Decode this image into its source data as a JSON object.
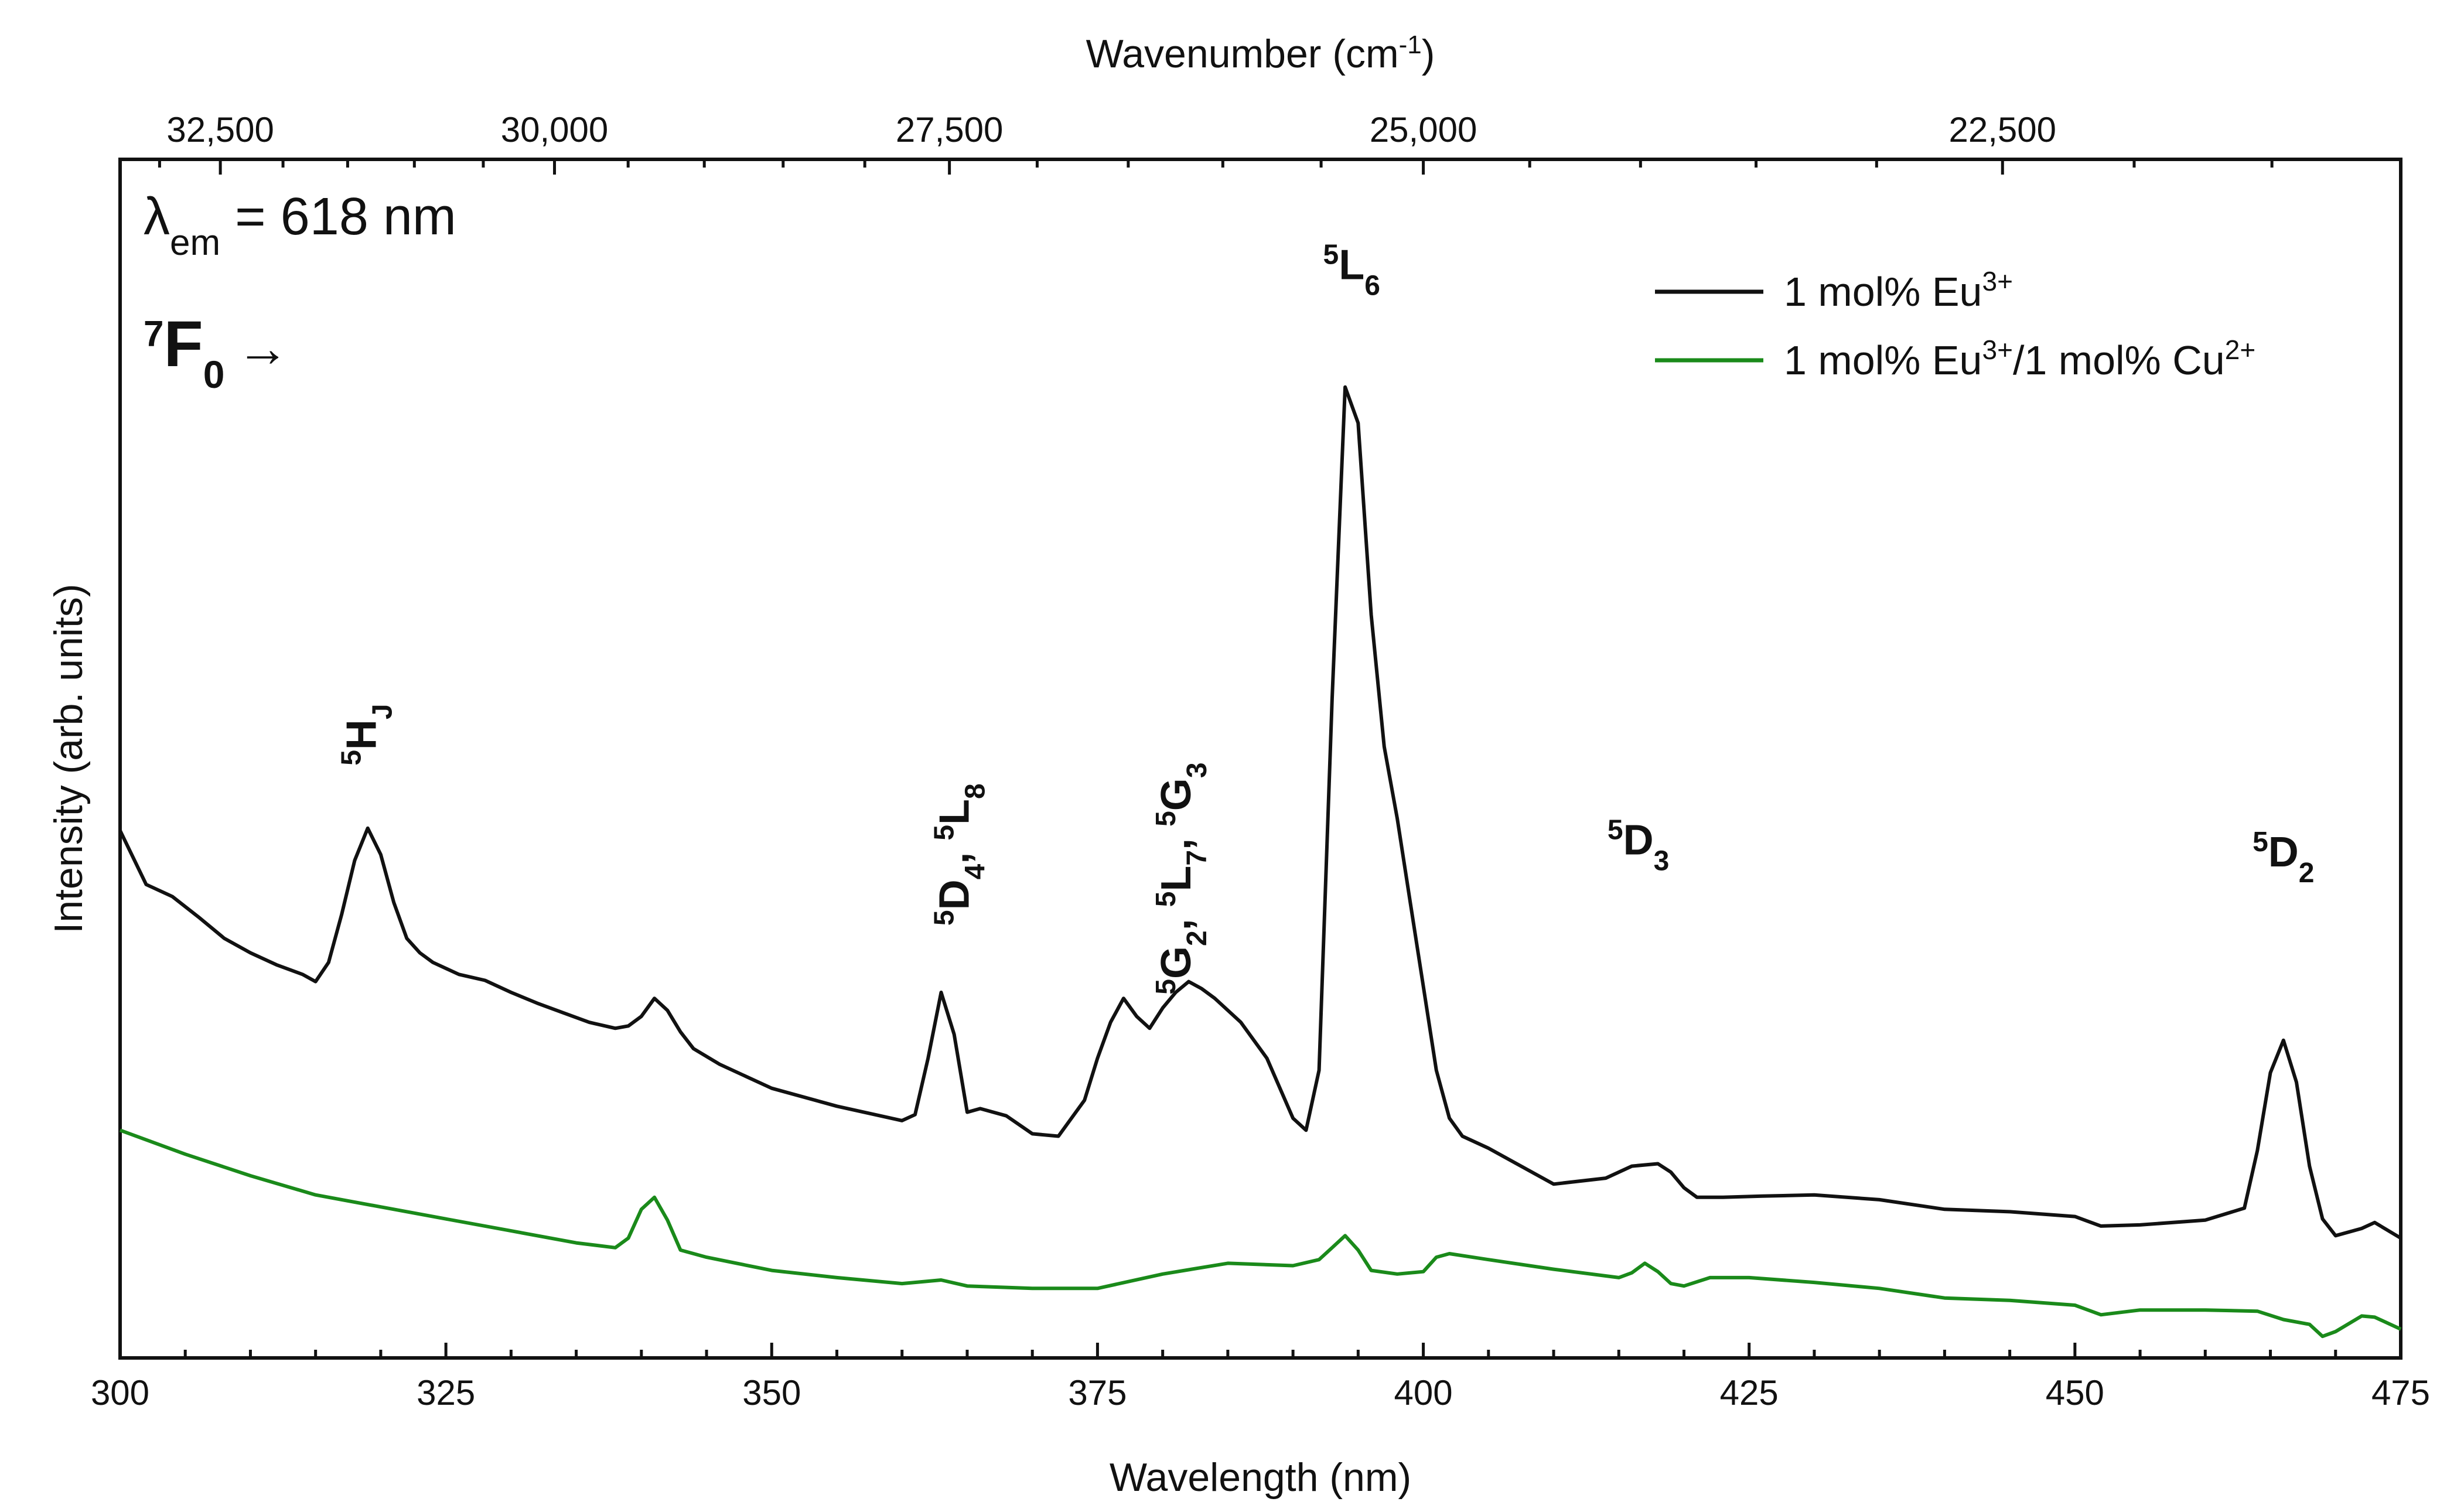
{
  "chart_data": {
    "type": "line",
    "title": "",
    "xlabel": "Wavelength (nm)",
    "ylabel": "Intensity (arb. units)",
    "xlim": [
      300,
      475
    ],
    "ylim": [
      0,
      100
    ],
    "x_ticks": [
      300,
      325,
      350,
      375,
      400,
      425,
      450,
      475
    ],
    "top_axis": {
      "label_main": "Wavenumber (cm",
      "label_sup": "-1",
      "label_close": ")",
      "ticks": [
        {
          "label": "32,500",
          "value": 32500
        },
        {
          "label": "30,000",
          "value": 30000
        },
        {
          "label": "27,500",
          "value": 27500
        },
        {
          "label": "25,000",
          "value": 25000
        },
        {
          "label": "22,500",
          "value": 22500
        }
      ]
    },
    "inset_text": {
      "lambda_symbol": "λ",
      "lambda_sub": "em",
      "lambda_value": " = 618 nm",
      "transition_main": "F",
      "transition_sup": "7",
      "transition_sub": "0",
      "transition_arrow": "→"
    },
    "legend": {
      "position": "top-right",
      "entries": [
        {
          "main": "1 mol% Eu",
          "sup": "3+",
          "rest": "",
          "rest_sup": "",
          "color": "#111111"
        },
        {
          "main": "1 mol% Eu",
          "sup": "3+",
          "rest": "/1 mol% Cu",
          "rest_sup": "2+",
          "color": "#1a8a1a"
        }
      ]
    },
    "annotations": [
      {
        "x": 318.5,
        "y": 52,
        "rotate": true,
        "parts": [
          [
            "sup",
            "5"
          ],
          [
            "n",
            "H"
          ],
          [
            "sub",
            "J"
          ]
        ]
      },
      {
        "x": 364,
        "y": 42,
        "rotate": true,
        "parts": [
          [
            "sup",
            "5"
          ],
          [
            "n",
            "D"
          ],
          [
            "sub",
            "4"
          ],
          [
            "n",
            ", "
          ],
          [
            "sup",
            "5"
          ],
          [
            "n",
            "L"
          ],
          [
            "sub",
            "8"
          ]
        ]
      },
      {
        "x": 381,
        "y": 40,
        "rotate": true,
        "parts": [
          [
            "sup",
            "5"
          ],
          [
            "n",
            "G"
          ],
          [
            "sub",
            "2"
          ],
          [
            "n",
            ", "
          ],
          [
            "sup",
            "5"
          ],
          [
            "n",
            "L"
          ],
          [
            "sub",
            "7"
          ],
          [
            "n",
            ", "
          ],
          [
            "sup",
            "5"
          ],
          [
            "n",
            "G"
          ],
          [
            "sub",
            "3"
          ]
        ]
      },
      {
        "x": 394.5,
        "y": 90,
        "rotate": false,
        "parts": [
          [
            "sup",
            "5"
          ],
          [
            "n",
            "L"
          ],
          [
            "sub",
            "6"
          ]
        ]
      },
      {
        "x": 416.5,
        "y": 42,
        "rotate": false,
        "parts": [
          [
            "sup",
            "5"
          ],
          [
            "n",
            "D"
          ],
          [
            "sub",
            "3"
          ]
        ]
      },
      {
        "x": 466,
        "y": 41,
        "rotate": false,
        "parts": [
          [
            "sup",
            "5"
          ],
          [
            "n",
            "D"
          ],
          [
            "sub",
            "2"
          ]
        ]
      }
    ],
    "series": [
      {
        "name": "1 mol% Eu3+",
        "color": "#111111",
        "x": [
          300,
          302,
          304,
          306,
          308,
          310,
          312,
          314,
          315,
          316,
          317,
          318,
          319,
          320,
          321,
          322,
          323,
          324,
          326,
          328,
          330,
          332,
          334,
          336,
          338,
          339,
          340,
          341,
          342,
          343,
          344,
          346,
          350,
          355,
          360,
          361,
          362,
          363,
          364,
          365,
          366,
          368,
          370,
          372,
          374,
          375,
          376,
          377,
          378,
          379,
          380,
          381,
          382,
          383,
          384,
          386,
          388,
          390,
          391,
          392,
          393,
          394,
          395,
          396,
          397,
          398,
          399,
          400,
          401,
          402,
          403,
          405,
          410,
          414,
          416,
          418,
          419,
          420,
          421,
          423,
          426,
          430,
          435,
          440,
          445,
          450,
          452,
          455,
          460,
          463,
          464,
          465,
          466,
          467,
          468,
          469,
          470,
          472,
          473,
          475
        ],
        "y": [
          44,
          39.5,
          38.5,
          36.8,
          35,
          33.8,
          32.8,
          32,
          31.4,
          33,
          37,
          41.5,
          44.2,
          42,
          38,
          35,
          33.8,
          33,
          32,
          31.5,
          30.5,
          29.6,
          28.8,
          28,
          27.5,
          27.7,
          28.5,
          30,
          29,
          27.2,
          25.8,
          24.5,
          22.5,
          21,
          19.8,
          20.3,
          25,
          30.5,
          27,
          20.5,
          20.8,
          20.2,
          18.7,
          18.5,
          21.5,
          25,
          28,
          30,
          28.5,
          27.5,
          29.2,
          30.5,
          31.4,
          30.8,
          30,
          28,
          25,
          20,
          19,
          24,
          55,
          81,
          78,
          62,
          51,
          45,
          38,
          31,
          24,
          20,
          18.5,
          17.5,
          14.5,
          15,
          16,
          16.2,
          15.5,
          14.2,
          13.4,
          13.4,
          13.5,
          13.6,
          13.2,
          12.4,
          12.2,
          11.8,
          11,
          11.1,
          11.5,
          12.5,
          17.3,
          23.8,
          26.5,
          23,
          16,
          11.6,
          10.2,
          10.8,
          11.3,
          10
        ]
      },
      {
        "name": "1 mol% Eu3+/1 mol% Cu2+",
        "color": "#1a8a1a",
        "x": [
          300,
          305,
          310,
          315,
          320,
          325,
          330,
          335,
          338,
          339,
          340,
          341,
          342,
          343,
          345,
          350,
          355,
          360,
          363,
          365,
          370,
          375,
          380,
          385,
          390,
          392,
          393,
          394,
          395,
          396,
          398,
          400,
          401,
          402,
          405,
          410,
          415,
          416,
          417,
          418,
          419,
          420,
          422,
          425,
          430,
          435,
          440,
          445,
          450,
          452,
          455,
          460,
          464,
          466,
          468,
          469,
          470,
          472,
          473,
          475
        ],
        "y": [
          19,
          17,
          15.2,
          13.6,
          12.6,
          11.6,
          10.6,
          9.6,
          9.2,
          10,
          12.4,
          13.4,
          11.5,
          9,
          8.4,
          7.3,
          6.7,
          6.2,
          6.5,
          6,
          5.8,
          5.8,
          7,
          7.9,
          7.7,
          8.2,
          9.2,
          10.2,
          9,
          7.3,
          7,
          7.2,
          8.4,
          8.7,
          8.2,
          7.4,
          6.7,
          7.1,
          7.9,
          7.2,
          6.2,
          6,
          6.7,
          6.7,
          6.3,
          5.8,
          5,
          4.8,
          4.4,
          3.6,
          4,
          4,
          3.9,
          3.2,
          2.8,
          1.8,
          2.2,
          3.5,
          3.4,
          2.4
        ]
      }
    ]
  }
}
